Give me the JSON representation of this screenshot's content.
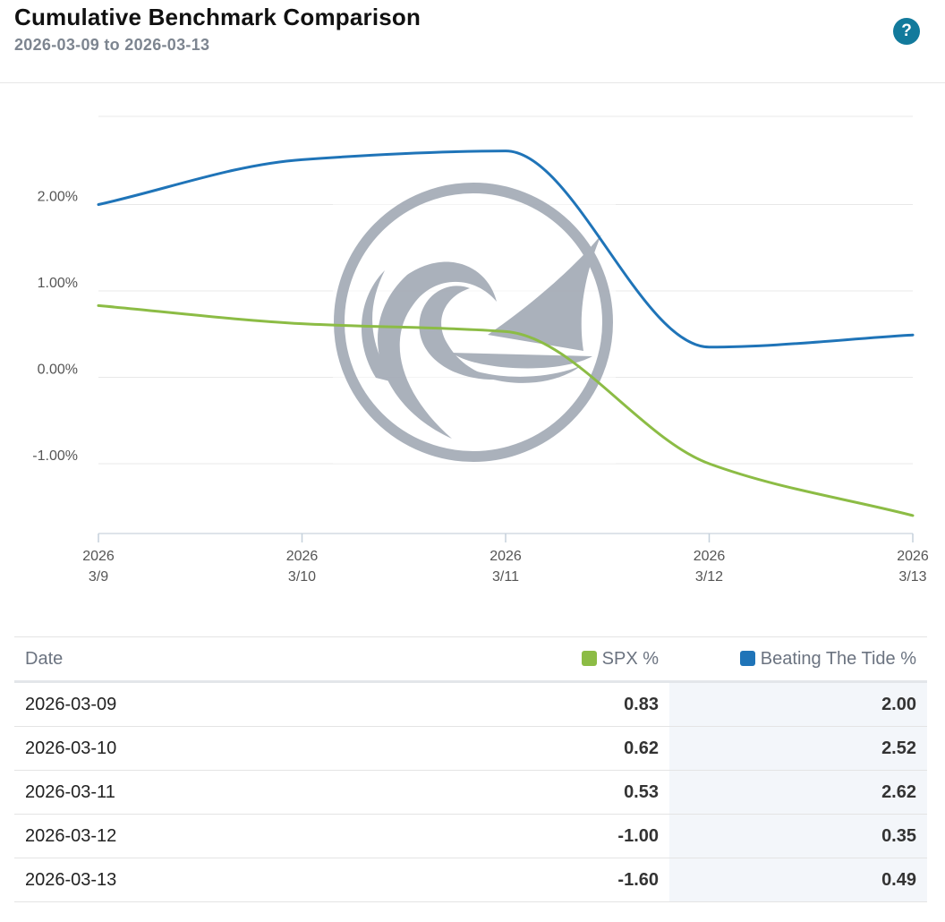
{
  "header": {
    "title": "Cumulative Benchmark Comparison",
    "date_range": "2026-03-09 to 2026-03-13",
    "help_label": "?"
  },
  "colors": {
    "spx": "#8cbc45",
    "beating": "#1f74b8",
    "grid": "#e8e8e8",
    "watermark": "#a6adb8"
  },
  "icons": {
    "help": "help-icon",
    "watermark": "wave-sail-logo-icon"
  },
  "chart_data": {
    "type": "line",
    "title": "Cumulative Benchmark Comparison",
    "categories": [
      "2026-03-09",
      "2026-03-10",
      "2026-03-11",
      "2026-03-12",
      "2026-03-13"
    ],
    "x_tick_labels": [
      {
        "year": "2026",
        "day": "3/9"
      },
      {
        "year": "2026",
        "day": "3/10"
      },
      {
        "year": "2026",
        "day": "3/11"
      },
      {
        "year": "2026",
        "day": "3/12"
      },
      {
        "year": "2026",
        "day": "3/13"
      }
    ],
    "y_ticks": [
      2,
      1,
      0,
      -1
    ],
    "y_tick_labels": [
      "2.00%",
      "1.00%",
      "0.00%",
      "-1.00%"
    ],
    "ylim": [
      -1.8,
      3.0
    ],
    "grid": true,
    "series": [
      {
        "name": "SPX %",
        "values": [
          0.83,
          0.62,
          0.53,
          -1.0,
          -1.6
        ]
      },
      {
        "name": "Beating The Tide %",
        "values": [
          2.0,
          2.52,
          2.62,
          0.35,
          0.49
        ]
      }
    ]
  },
  "table": {
    "headers": {
      "date": "Date",
      "spx": "SPX %",
      "beating": "Beating The Tide %"
    },
    "rows": [
      {
        "date": "2026-03-09",
        "spx": "0.83",
        "beating": "2.00"
      },
      {
        "date": "2026-03-10",
        "spx": "0.62",
        "beating": "2.52"
      },
      {
        "date": "2026-03-11",
        "spx": "0.53",
        "beating": "2.62"
      },
      {
        "date": "2026-03-12",
        "spx": "-1.00",
        "beating": "0.35"
      },
      {
        "date": "2026-03-13",
        "spx": "-1.60",
        "beating": "0.49"
      }
    ]
  }
}
